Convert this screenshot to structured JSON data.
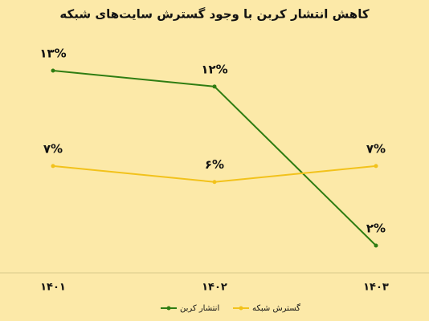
{
  "chart_data": {
    "type": "line",
    "title": "کاهش انتشار کربن با وجود گسترش سایت‌های شبکه",
    "categories": [
      "۱۴۰۱",
      "۱۴۰۲",
      "۱۴۰۳"
    ],
    "series": [
      {
        "name": "انتشار کربن",
        "color": "#2f7d12",
        "values": [
          13,
          12,
          2
        ],
        "value_labels": [
          "۱۳%",
          "۱۲%",
          "۲%"
        ]
      },
      {
        "name": "گسترش شبکه",
        "color": "#f2c21b",
        "values": [
          7,
          6,
          7
        ],
        "value_labels": [
          "۷%",
          "۶%",
          "۷%"
        ]
      }
    ]
  }
}
